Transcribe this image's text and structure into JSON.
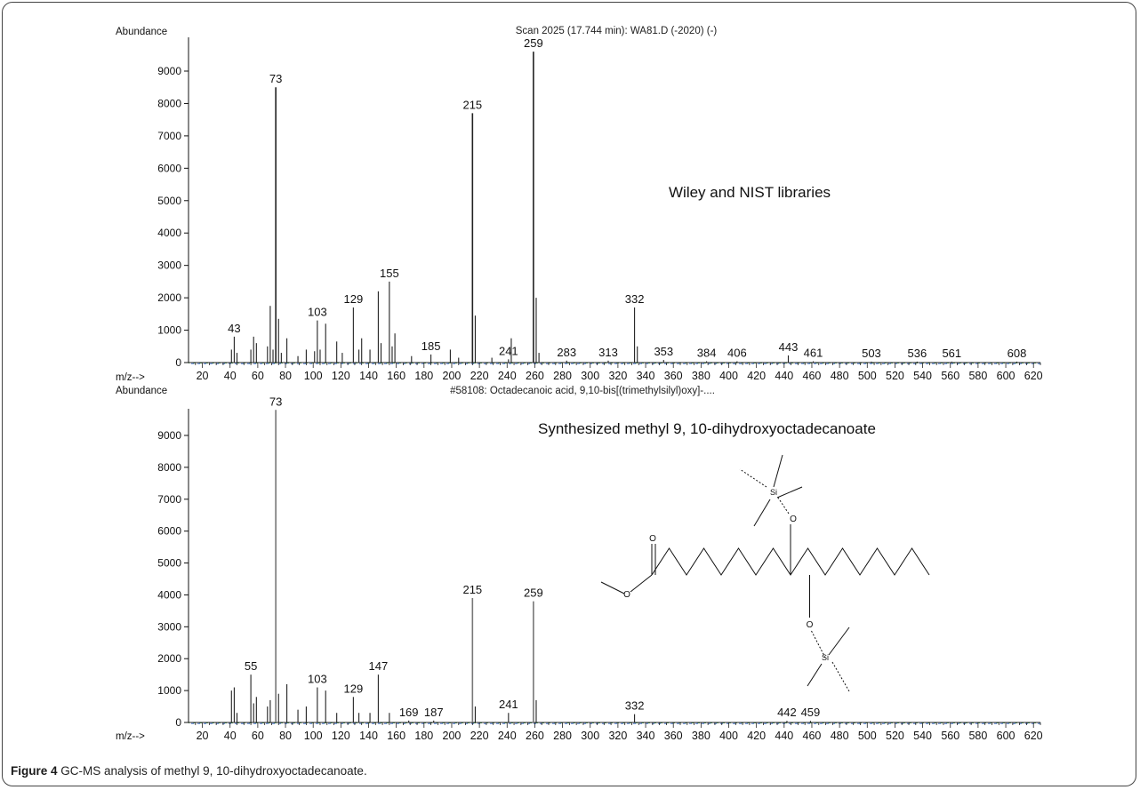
{
  "caption": {
    "label": "Figure 4",
    "text": "GC-MS analysis of methyl 9, 10-dihydroxyoctadecanoate"
  },
  "colors": {
    "peak": "#222222",
    "axis": "#111111",
    "baseline_mix": [
      "#d9534f",
      "#3c9d4a",
      "#3b6fd1"
    ]
  },
  "chart_data": [
    {
      "type": "bar",
      "subtype": "mass-spectrum",
      "title": "Scan 2025 (17.744 min): WA81.D (-2020) (-)",
      "ylabel": "Abundance",
      "xlabel": "m/z-->",
      "annotation": "Wiley and NIST libraries",
      "xlim": [
        10,
        625
      ],
      "ylim": [
        0,
        10000
      ],
      "xticks": [
        20,
        40,
        60,
        80,
        100,
        120,
        140,
        160,
        180,
        200,
        220,
        240,
        260,
        280,
        300,
        320,
        340,
        360,
        380,
        400,
        420,
        440,
        460,
        480,
        500,
        520,
        540,
        560,
        580,
        600,
        620
      ],
      "yticks": [
        0,
        1000,
        2000,
        3000,
        4000,
        5000,
        6000,
        7000,
        8000,
        9000
      ],
      "peaks": [
        {
          "x": 41,
          "y": 400
        },
        {
          "x": 43,
          "y": 800,
          "label": "43"
        },
        {
          "x": 45,
          "y": 300
        },
        {
          "x": 55,
          "y": 400
        },
        {
          "x": 57,
          "y": 800
        },
        {
          "x": 59,
          "y": 600
        },
        {
          "x": 67,
          "y": 500
        },
        {
          "x": 69,
          "y": 1750
        },
        {
          "x": 71,
          "y": 400
        },
        {
          "x": 73,
          "y": 8500,
          "label": "73"
        },
        {
          "x": 75,
          "y": 1350
        },
        {
          "x": 77,
          "y": 300
        },
        {
          "x": 81,
          "y": 750
        },
        {
          "x": 89,
          "y": 200
        },
        {
          "x": 95,
          "y": 400
        },
        {
          "x": 101,
          "y": 350
        },
        {
          "x": 103,
          "y": 1300,
          "label": "103"
        },
        {
          "x": 105,
          "y": 400
        },
        {
          "x": 109,
          "y": 1200
        },
        {
          "x": 117,
          "y": 650
        },
        {
          "x": 121,
          "y": 300
        },
        {
          "x": 129,
          "y": 1700,
          "label": "129"
        },
        {
          "x": 133,
          "y": 400
        },
        {
          "x": 135,
          "y": 750
        },
        {
          "x": 141,
          "y": 400
        },
        {
          "x": 147,
          "y": 2200
        },
        {
          "x": 149,
          "y": 600
        },
        {
          "x": 155,
          "y": 2500,
          "label": "155"
        },
        {
          "x": 157,
          "y": 500
        },
        {
          "x": 159,
          "y": 900
        },
        {
          "x": 171,
          "y": 200
        },
        {
          "x": 185,
          "y": 250,
          "label": "185"
        },
        {
          "x": 199,
          "y": 400
        },
        {
          "x": 205,
          "y": 150
        },
        {
          "x": 215,
          "y": 7700,
          "label": "215"
        },
        {
          "x": 217,
          "y": 1450
        },
        {
          "x": 229,
          "y": 150
        },
        {
          "x": 241,
          "y": 100,
          "label": "241"
        },
        {
          "x": 243,
          "y": 750
        },
        {
          "x": 259,
          "y": 9600,
          "label": "259"
        },
        {
          "x": 261,
          "y": 2000
        },
        {
          "x": 263,
          "y": 300
        },
        {
          "x": 283,
          "y": 60,
          "label": "283"
        },
        {
          "x": 313,
          "y": 60,
          "label": "313"
        },
        {
          "x": 332,
          "y": 1700,
          "label": "332"
        },
        {
          "x": 334,
          "y": 500
        },
        {
          "x": 353,
          "y": 80,
          "label": "353"
        },
        {
          "x": 384,
          "y": 40,
          "label": "384"
        },
        {
          "x": 406,
          "y": 40,
          "label": "406"
        },
        {
          "x": 443,
          "y": 220,
          "label": "443"
        },
        {
          "x": 461,
          "y": 40,
          "label": "461"
        },
        {
          "x": 503,
          "y": 30,
          "label": "503"
        },
        {
          "x": 536,
          "y": 30,
          "label": "536"
        },
        {
          "x": 561,
          "y": 30,
          "label": "561"
        },
        {
          "x": 608,
          "y": 30,
          "label": "608"
        }
      ]
    },
    {
      "type": "bar",
      "subtype": "mass-spectrum",
      "title": "#58108: Octadecanoic acid, 9,10-bis[(trimethylsilyl)oxy]-....",
      "ylabel": "Abundance",
      "xlabel": "m/z-->",
      "annotation": "Synthesized methyl 9, 10-dihydroxyoctadecanoate",
      "xlim": [
        10,
        625
      ],
      "ylim": [
        0,
        10000
      ],
      "xticks": [
        20,
        40,
        60,
        80,
        100,
        120,
        140,
        160,
        180,
        200,
        220,
        240,
        260,
        280,
        300,
        320,
        340,
        360,
        380,
        400,
        420,
        440,
        460,
        480,
        500,
        520,
        540,
        560,
        580,
        600,
        620
      ],
      "yticks": [
        0,
        1000,
        2000,
        3000,
        4000,
        5000,
        6000,
        7000,
        8000,
        9000
      ],
      "peaks": [
        {
          "x": 41,
          "y": 1000
        },
        {
          "x": 43,
          "y": 1100
        },
        {
          "x": 45,
          "y": 300
        },
        {
          "x": 55,
          "y": 1500,
          "label": "55"
        },
        {
          "x": 57,
          "y": 600
        },
        {
          "x": 59,
          "y": 800
        },
        {
          "x": 67,
          "y": 500
        },
        {
          "x": 69,
          "y": 700
        },
        {
          "x": 73,
          "y": 9800,
          "label": "73"
        },
        {
          "x": 75,
          "y": 900
        },
        {
          "x": 81,
          "y": 1200
        },
        {
          "x": 89,
          "y": 400
        },
        {
          "x": 95,
          "y": 500
        },
        {
          "x": 103,
          "y": 1100,
          "label": "103"
        },
        {
          "x": 109,
          "y": 1000
        },
        {
          "x": 117,
          "y": 300
        },
        {
          "x": 129,
          "y": 800,
          "label": "129"
        },
        {
          "x": 133,
          "y": 300
        },
        {
          "x": 141,
          "y": 300
        },
        {
          "x": 147,
          "y": 1500,
          "label": "147"
        },
        {
          "x": 155,
          "y": 300
        },
        {
          "x": 169,
          "y": 60,
          "label": "169"
        },
        {
          "x": 187,
          "y": 60,
          "label": "187"
        },
        {
          "x": 215,
          "y": 3900,
          "label": "215"
        },
        {
          "x": 217,
          "y": 500
        },
        {
          "x": 241,
          "y": 300,
          "label": "241"
        },
        {
          "x": 259,
          "y": 3800,
          "label": "259"
        },
        {
          "x": 261,
          "y": 700
        },
        {
          "x": 332,
          "y": 260,
          "label": "332"
        },
        {
          "x": 442,
          "y": 50,
          "label": "442"
        },
        {
          "x": 459,
          "y": 50,
          "label": "459"
        }
      ]
    }
  ],
  "structure": {
    "atoms": {
      "oxygen": "O",
      "silicon": "Si"
    }
  }
}
